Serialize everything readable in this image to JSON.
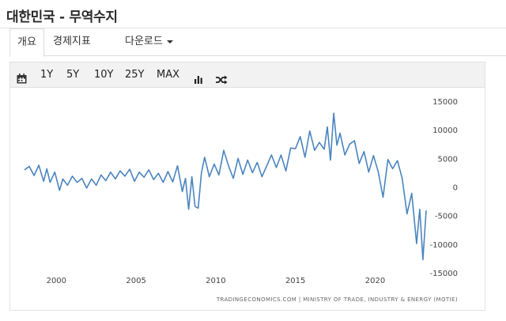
{
  "page": {
    "title": "대한민국 - 무역수지"
  },
  "tabs": [
    {
      "label": "개요",
      "active": true
    },
    {
      "label": "경제지표",
      "active": false
    },
    {
      "label": "다운로드",
      "active": false
    }
  ],
  "toolbar": {
    "calendar_icon": "calendar-icon",
    "ranges": [
      "1Y",
      "5Y",
      "10Y",
      "25Y",
      "MAX"
    ],
    "chart_type_icon": "bar-chart-icon",
    "compare_icon": "shuffle-icon"
  },
  "colors": {
    "line": "#4a84bf",
    "tick_label": "#444444",
    "source": "#666666"
  },
  "chart_data": {
    "type": "line",
    "title": "",
    "xlabel": "",
    "ylabel": "",
    "xlim": [
      1998.0,
      2023.4
    ],
    "ylim": [
      -15000,
      15000
    ],
    "x_ticks": [
      2000,
      2005,
      2010,
      2015,
      2020
    ],
    "y_ticks": [
      15000,
      10000,
      5000,
      0,
      -5000,
      -10000,
      -15000
    ],
    "y_tick_labels": [
      "15000",
      "10000",
      "5000",
      "0",
      "-5000",
      "-10000",
      "-15000"
    ],
    "grid": false,
    "legend": "none",
    "source": "TRADINGECONOMICS.COM | MINISTRY OF TRADE, INDUSTRY & ENERGY (MOTIE)",
    "series": [
      {
        "x": [
          1998.0,
          1998.3,
          1998.6,
          1998.9,
          1999.2,
          1999.4,
          1999.6,
          1999.9,
          2000.2,
          2000.4,
          2000.7,
          2001.0,
          2001.3,
          2001.6,
          2001.9,
          2002.2,
          2002.5,
          2002.8,
          2003.1,
          2003.4,
          2003.7,
          2004.0,
          2004.3,
          2004.6,
          2004.9,
          2005.2,
          2005.5,
          2005.8,
          2006.1,
          2006.4,
          2006.7,
          2007.0,
          2007.3,
          2007.6,
          2007.9,
          2008.1,
          2008.3,
          2008.5,
          2008.7,
          2008.9,
          2009.1,
          2009.3,
          2009.6,
          2009.9,
          2010.2,
          2010.5,
          2010.8,
          2011.1,
          2011.4,
          2011.7,
          2012.0,
          2012.3,
          2012.6,
          2012.9,
          2013.2,
          2013.5,
          2013.8,
          2014.1,
          2014.4,
          2014.7,
          2015.0,
          2015.3,
          2015.6,
          2015.9,
          2016.2,
          2016.5,
          2016.8,
          2017.0,
          2017.2,
          2017.4,
          2017.6,
          2017.8,
          2018.1,
          2018.4,
          2018.7,
          2019.0,
          2019.3,
          2019.6,
          2019.9,
          2020.2,
          2020.5,
          2020.8,
          2021.1,
          2021.4,
          2021.7,
          2022.0,
          2022.3,
          2022.6,
          2022.8,
          2023.0,
          2023.2
        ],
        "y": [
          3000,
          3600,
          2000,
          3800,
          1000,
          3200,
          800,
          2600,
          -600,
          1400,
          300,
          1900,
          800,
          1500,
          -200,
          1400,
          300,
          2100,
          1100,
          2600,
          1400,
          2800,
          1900,
          3100,
          1000,
          2600,
          1700,
          3000,
          1300,
          2400,
          800,
          2700,
          900,
          3700,
          -800,
          1500,
          -3900,
          1800,
          -3400,
          -3700,
          2400,
          5200,
          1800,
          4000,
          2100,
          6400,
          3700,
          1500,
          5000,
          2200,
          4700,
          2500,
          4300,
          1800,
          3700,
          5600,
          3400,
          5600,
          2800,
          6800,
          6700,
          8800,
          5200,
          9800,
          6400,
          7800,
          6600,
          10500,
          4700,
          12900,
          7300,
          9400,
          5600,
          7500,
          8100,
          4100,
          6200,
          2600,
          5500,
          2600,
          -1800,
          4800,
          3200,
          4600,
          1500,
          -4700,
          -1100,
          -9900,
          -3900,
          -12700,
          -4100
        ]
      }
    ]
  }
}
